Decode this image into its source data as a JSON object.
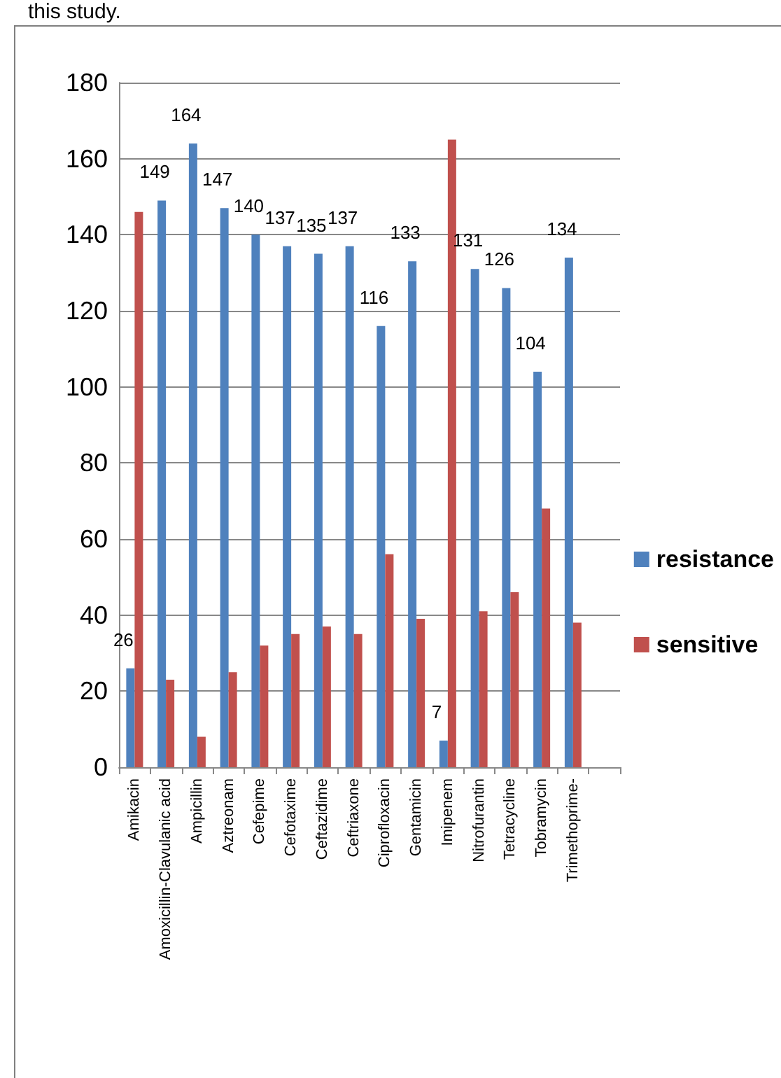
{
  "chart_data": {
    "type": "bar",
    "annotations": [
      "this study."
    ],
    "categories": [
      "Amikacin",
      "Amoxicillin-Clavulanic acid",
      "Ampicillin",
      "Aztreonam",
      "Cefepime",
      "Cefotaxime",
      "Ceftazidime",
      "Ceftriaxone",
      "Ciprofloxacin",
      "Gentamicin",
      "Imipenem",
      "Nitrofurantin",
      "Tetracycline",
      "Tobramycin",
      "Trimethoprime-",
      null
    ],
    "series": [
      {
        "name": "resistance",
        "color": "#4f81bd",
        "values": [
          26,
          149,
          164,
          147,
          140,
          137,
          135,
          137,
          116,
          133,
          7,
          131,
          126,
          104,
          134,
          null
        ],
        "value_labels": [
          "26",
          "149",
          "164",
          "147",
          "140",
          "137",
          "135",
          "137",
          "116",
          "133",
          "7",
          "131",
          "126",
          "104",
          "134",
          null
        ]
      },
      {
        "name": "sensitive",
        "color": "#c0504d",
        "values": [
          146,
          23,
          8,
          25,
          32,
          35,
          37,
          35,
          56,
          39,
          165,
          41,
          46,
          68,
          38,
          null
        ]
      }
    ],
    "ylim": [
      0,
      180
    ],
    "yticks": [
      0,
      20,
      40,
      60,
      80,
      100,
      120,
      140,
      160,
      180
    ],
    "grid": "y",
    "legend": "right"
  }
}
